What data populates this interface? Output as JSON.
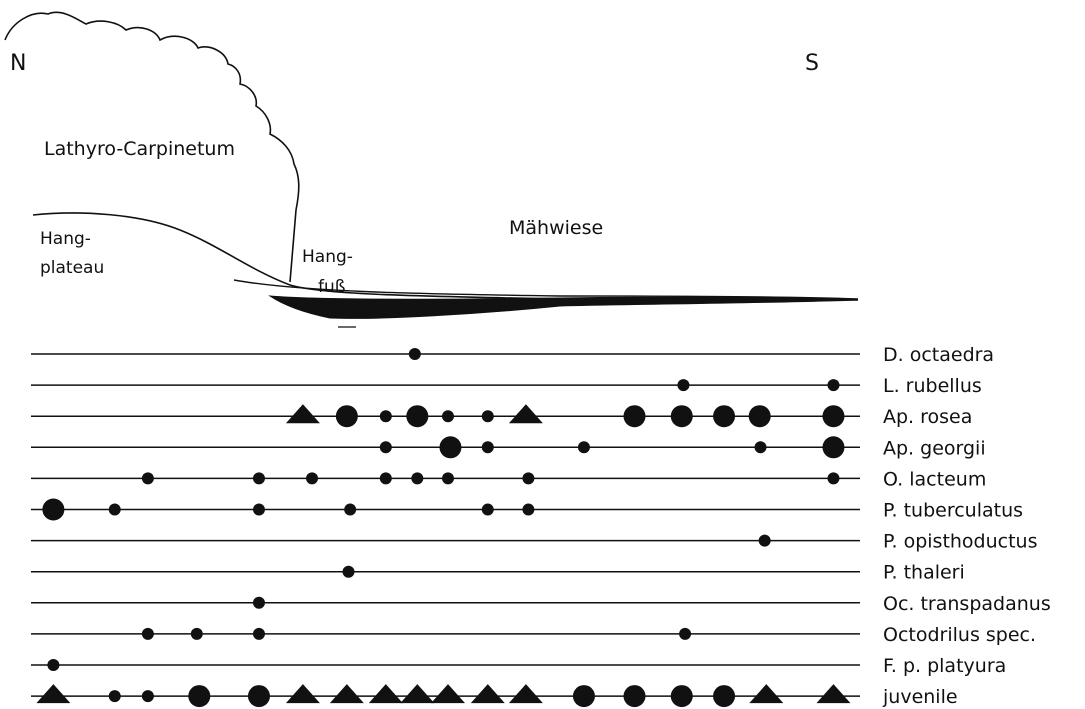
{
  "compass": {
    "north": "N",
    "south": "S"
  },
  "profile_labels": {
    "forest": "Lathyro-Carpinetum",
    "plateau_line1": "Hang-",
    "plateau_line2": "plateau",
    "foot_line1": "Hang-",
    "foot_line2": "fuß",
    "meadow": "Mähwiese"
  },
  "legend_marker_shapes": [
    "small-dot",
    "medium-dot",
    "large-dot",
    "triangle"
  ],
  "species": [
    {
      "name": "D. octaedra",
      "markers": [
        {
          "pos": 0.463,
          "shape": "small-dot"
        }
      ]
    },
    {
      "name": "L. rubellus",
      "markers": [
        {
          "pos": 0.787,
          "shape": "small-dot"
        },
        {
          "pos": 0.968,
          "shape": "small-dot"
        }
      ]
    },
    {
      "name": "Ap. rosea",
      "markers": [
        {
          "pos": 0.328,
          "shape": "triangle"
        },
        {
          "pos": 0.381,
          "shape": "large-dot"
        },
        {
          "pos": 0.428,
          "shape": "small-dot"
        },
        {
          "pos": 0.466,
          "shape": "large-dot"
        },
        {
          "pos": 0.503,
          "shape": "small-dot"
        },
        {
          "pos": 0.551,
          "shape": "small-dot"
        },
        {
          "pos": 0.597,
          "shape": "triangle"
        },
        {
          "pos": 0.728,
          "shape": "large-dot"
        },
        {
          "pos": 0.785,
          "shape": "large-dot"
        },
        {
          "pos": 0.836,
          "shape": "large-dot"
        },
        {
          "pos": 0.879,
          "shape": "large-dot"
        },
        {
          "pos": 0.968,
          "shape": "large-dot"
        }
      ]
    },
    {
      "name": "Ap. georgii",
      "markers": [
        {
          "pos": 0.428,
          "shape": "small-dot"
        },
        {
          "pos": 0.506,
          "shape": "large-dot"
        },
        {
          "pos": 0.551,
          "shape": "small-dot"
        },
        {
          "pos": 0.667,
          "shape": "small-dot"
        },
        {
          "pos": 0.88,
          "shape": "small-dot"
        },
        {
          "pos": 0.968,
          "shape": "large-dot"
        }
      ]
    },
    {
      "name": "O. lacteum",
      "markers": [
        {
          "pos": 0.141,
          "shape": "small-dot"
        },
        {
          "pos": 0.275,
          "shape": "small-dot"
        },
        {
          "pos": 0.339,
          "shape": "small-dot"
        },
        {
          "pos": 0.428,
          "shape": "small-dot"
        },
        {
          "pos": 0.466,
          "shape": "small-dot"
        },
        {
          "pos": 0.503,
          "shape": "small-dot"
        },
        {
          "pos": 0.6,
          "shape": "small-dot"
        },
        {
          "pos": 0.968,
          "shape": "small-dot"
        }
      ]
    },
    {
      "name": "P. tuberculatus",
      "markers": [
        {
          "pos": 0.027,
          "shape": "large-dot"
        },
        {
          "pos": 0.101,
          "shape": "small-dot"
        },
        {
          "pos": 0.275,
          "shape": "small-dot"
        },
        {
          "pos": 0.385,
          "shape": "small-dot"
        },
        {
          "pos": 0.551,
          "shape": "small-dot"
        },
        {
          "pos": 0.6,
          "shape": "small-dot"
        }
      ]
    },
    {
      "name": "P. opisthoductus",
      "markers": [
        {
          "pos": 0.885,
          "shape": "small-dot"
        }
      ]
    },
    {
      "name": "P. thaleri",
      "markers": [
        {
          "pos": 0.383,
          "shape": "small-dot"
        }
      ]
    },
    {
      "name": "Oc. transpadanus",
      "markers": [
        {
          "pos": 0.275,
          "shape": "small-dot"
        }
      ]
    },
    {
      "name": "Octodrilus spec.",
      "markers": [
        {
          "pos": 0.141,
          "shape": "small-dot"
        },
        {
          "pos": 0.2,
          "shape": "small-dot"
        },
        {
          "pos": 0.275,
          "shape": "small-dot"
        },
        {
          "pos": 0.789,
          "shape": "small-dot"
        }
      ]
    },
    {
      "name": "F. p. platyura",
      "markers": [
        {
          "pos": 0.027,
          "shape": "small-dot"
        }
      ]
    },
    {
      "name": "juvenile",
      "markers": [
        {
          "pos": 0.027,
          "shape": "triangle"
        },
        {
          "pos": 0.101,
          "shape": "small-dot"
        },
        {
          "pos": 0.141,
          "shape": "small-dot"
        },
        {
          "pos": 0.203,
          "shape": "large-dot"
        },
        {
          "pos": 0.275,
          "shape": "large-dot"
        },
        {
          "pos": 0.328,
          "shape": "triangle"
        },
        {
          "pos": 0.381,
          "shape": "triangle"
        },
        {
          "pos": 0.428,
          "shape": "triangle"
        },
        {
          "pos": 0.466,
          "shape": "triangle"
        },
        {
          "pos": 0.503,
          "shape": "triangle"
        },
        {
          "pos": 0.551,
          "shape": "triangle"
        },
        {
          "pos": 0.597,
          "shape": "triangle"
        },
        {
          "pos": 0.667,
          "shape": "large-dot"
        },
        {
          "pos": 0.728,
          "shape": "large-dot"
        },
        {
          "pos": 0.785,
          "shape": "large-dot"
        },
        {
          "pos": 0.836,
          "shape": "large-dot"
        },
        {
          "pos": 0.887,
          "shape": "triangle"
        },
        {
          "pos": 0.968,
          "shape": "triangle"
        }
      ]
    }
  ],
  "colors": {
    "ink": "#111111",
    "background": "#ffffff"
  }
}
